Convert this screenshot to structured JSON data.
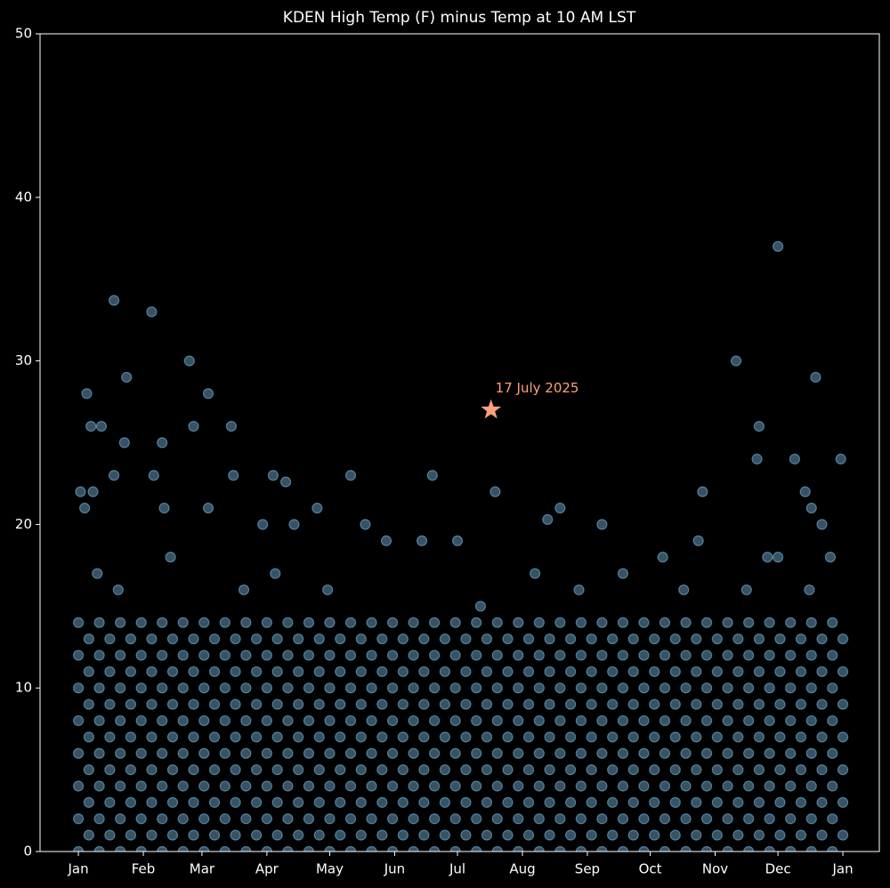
{
  "chart_data": {
    "type": "scatter",
    "title": "KDEN High Temp (F) minus Temp at 10 AM LST",
    "color": "#87cefa",
    "xlim": [
      -17.3,
      383.4
    ],
    "ylim": [
      0,
      50
    ],
    "xticks": [
      {
        "value": 1,
        "label": "Jan"
      },
      {
        "value": 32,
        "label": "Feb"
      },
      {
        "value": 60,
        "label": "Mar"
      },
      {
        "value": 91,
        "label": "Apr"
      },
      {
        "value": 121,
        "label": "May"
      },
      {
        "value": 152,
        "label": "Jun"
      },
      {
        "value": 182,
        "label": "Jul"
      },
      {
        "value": 213,
        "label": "Aug"
      },
      {
        "value": 244,
        "label": "Sep"
      },
      {
        "value": 274,
        "label": "Oct"
      },
      {
        "value": 305,
        "label": "Nov"
      },
      {
        "value": 335,
        "label": "Dec"
      },
      {
        "value": 366,
        "label": "Jan"
      }
    ],
    "yticks": [
      0,
      10,
      20,
      30,
      40,
      50
    ],
    "series": [
      {
        "x": [
          1,
          11,
          21,
          31,
          41,
          51,
          61,
          71,
          81,
          91,
          101,
          111,
          121,
          131,
          141,
          151,
          161,
          171,
          181,
          191,
          201,
          211,
          221,
          231,
          241,
          251,
          261,
          271,
          281,
          291,
          301,
          311,
          321,
          331,
          341,
          351,
          361
        ],
        "values": [
          0,
          0,
          0,
          0,
          0,
          0,
          0,
          0,
          0,
          0,
          0,
          0,
          0,
          0,
          0,
          0,
          0,
          0,
          0,
          0,
          0,
          0,
          0,
          0,
          0,
          0,
          0,
          0,
          0,
          0,
          0,
          0,
          0,
          0,
          0,
          0,
          0
        ]
      },
      {
        "x": [
          6,
          16,
          26,
          36,
          46,
          56,
          66,
          76,
          86,
          96,
          106,
          116,
          126,
          136,
          146,
          156,
          166,
          176,
          186,
          196,
          206,
          216,
          226,
          236,
          246,
          256,
          266,
          276,
          286,
          296,
          306,
          316,
          326,
          336,
          346,
          356,
          366
        ],
        "values": [
          1,
          1,
          1,
          1,
          1,
          1,
          1,
          1,
          1,
          1,
          1,
          1,
          1,
          1,
          1,
          1,
          1,
          1,
          1,
          1,
          1,
          1,
          1,
          1,
          1,
          1,
          1,
          1,
          1,
          1,
          1,
          1,
          1,
          1,
          1,
          1,
          1
        ]
      },
      {
        "x": [
          1,
          11,
          21,
          31,
          41,
          51,
          61,
          71,
          81,
          91,
          101,
          111,
          121,
          131,
          141,
          151,
          161,
          171,
          181,
          191,
          201,
          211,
          221,
          231,
          241,
          251,
          261,
          271,
          281,
          291,
          301,
          311,
          321,
          331,
          341,
          351,
          361
        ],
        "values": [
          2,
          2,
          2,
          2,
          2,
          2,
          2,
          2,
          2,
          2,
          2,
          2,
          2,
          2,
          2,
          2,
          2,
          2,
          2,
          2,
          2,
          2,
          2,
          2,
          2,
          2,
          2,
          2,
          2,
          2,
          2,
          2,
          2,
          2,
          2,
          2,
          2
        ]
      },
      {
        "x": [
          6,
          16,
          26,
          36,
          46,
          56,
          66,
          76,
          86,
          96,
          106,
          116,
          126,
          136,
          146,
          156,
          166,
          176,
          186,
          196,
          206,
          216,
          226,
          236,
          246,
          256,
          266,
          276,
          286,
          296,
          306,
          316,
          326,
          336,
          346,
          356,
          366
        ],
        "values": [
          3,
          3,
          3,
          3,
          3,
          3,
          3,
          3,
          3,
          3,
          3,
          3,
          3,
          3,
          3,
          3,
          3,
          3,
          3,
          3,
          3,
          3,
          3,
          3,
          3,
          3,
          3,
          3,
          3,
          3,
          3,
          3,
          3,
          3,
          3,
          3,
          3
        ]
      },
      {
        "x": [
          1,
          11,
          21,
          31,
          41,
          51,
          61,
          71,
          81,
          91,
          101,
          111,
          121,
          131,
          141,
          151,
          161,
          171,
          181,
          191,
          201,
          211,
          221,
          231,
          241,
          251,
          261,
          271,
          281,
          291,
          301,
          311,
          321,
          331,
          341,
          351,
          361
        ],
        "values": [
          4,
          4,
          4,
          4,
          4,
          4,
          4,
          4,
          4,
          4,
          4,
          4,
          4,
          4,
          4,
          4,
          4,
          4,
          4,
          4,
          4,
          4,
          4,
          4,
          4,
          4,
          4,
          4,
          4,
          4,
          4,
          4,
          4,
          4,
          4,
          4,
          4
        ]
      },
      {
        "x": [
          6,
          16,
          26,
          36,
          46,
          56,
          66,
          76,
          86,
          96,
          106,
          116,
          126,
          136,
          146,
          156,
          166,
          176,
          186,
          196,
          206,
          216,
          226,
          236,
          246,
          256,
          266,
          276,
          286,
          296,
          306,
          316,
          326,
          336,
          346,
          356,
          366
        ],
        "values": [
          5,
          5,
          5,
          5,
          5,
          5,
          5,
          5,
          5,
          5,
          5,
          5,
          5,
          5,
          5,
          5,
          5,
          5,
          5,
          5,
          5,
          5,
          5,
          5,
          5,
          5,
          5,
          5,
          5,
          5,
          5,
          5,
          5,
          5,
          5,
          5,
          5
        ]
      },
      {
        "x": [
          1,
          11,
          21,
          31,
          41,
          51,
          61,
          71,
          81,
          91,
          101,
          111,
          121,
          131,
          141,
          151,
          161,
          171,
          181,
          191,
          201,
          211,
          221,
          231,
          241,
          251,
          261,
          271,
          281,
          291,
          301,
          311,
          321,
          331,
          341,
          351,
          361
        ],
        "values": [
          6,
          6,
          6,
          6,
          6,
          6,
          6,
          6,
          6,
          6,
          6,
          6,
          6,
          6,
          6,
          6,
          6,
          6,
          6,
          6,
          6,
          6,
          6,
          6,
          6,
          6,
          6,
          6,
          6,
          6,
          6,
          6,
          6,
          6,
          6,
          6,
          6
        ]
      },
      {
        "x": [
          6,
          16,
          26,
          36,
          46,
          56,
          66,
          76,
          86,
          96,
          106,
          116,
          126,
          136,
          146,
          156,
          166,
          176,
          186,
          196,
          206,
          216,
          226,
          236,
          246,
          256,
          266,
          276,
          286,
          296,
          306,
          316,
          326,
          336,
          346,
          356,
          366
        ],
        "values": [
          7,
          7,
          7,
          7,
          7,
          7,
          7,
          7,
          7,
          7,
          7,
          7,
          7,
          7,
          7,
          7,
          7,
          7,
          7,
          7,
          7,
          7,
          7,
          7,
          7,
          7,
          7,
          7,
          7,
          7,
          7,
          7,
          7,
          7,
          7,
          7,
          7
        ]
      },
      {
        "x": [
          1,
          11,
          21,
          31,
          41,
          51,
          61,
          71,
          81,
          91,
          101,
          111,
          121,
          131,
          141,
          151,
          161,
          171,
          181,
          191,
          201,
          211,
          221,
          231,
          241,
          251,
          261,
          271,
          281,
          291,
          301,
          311,
          321,
          331,
          341,
          351,
          361
        ],
        "values": [
          8,
          8,
          8,
          8,
          8,
          8,
          8,
          8,
          8,
          8,
          8,
          8,
          8,
          8,
          8,
          8,
          8,
          8,
          8,
          8,
          8,
          8,
          8,
          8,
          8,
          8,
          8,
          8,
          8,
          8,
          8,
          8,
          8,
          8,
          8,
          8,
          8
        ]
      },
      {
        "x": [
          6,
          16,
          26,
          36,
          46,
          56,
          66,
          76,
          86,
          96,
          106,
          116,
          126,
          136,
          146,
          156,
          166,
          176,
          186,
          196,
          206,
          216,
          226,
          236,
          246,
          256,
          266,
          276,
          286,
          296,
          306,
          316,
          326,
          336,
          346,
          356,
          366
        ],
        "values": [
          9,
          9,
          9,
          9,
          9,
          9,
          9,
          9,
          9,
          9,
          9,
          9,
          9,
          9,
          9,
          9,
          9,
          9,
          9,
          9,
          9,
          9,
          9,
          9,
          9,
          9,
          9,
          9,
          9,
          9,
          9,
          9,
          9,
          9,
          9,
          9,
          9
        ]
      },
      {
        "x": [
          1,
          11,
          21,
          31,
          41,
          51,
          61,
          71,
          81,
          91,
          101,
          111,
          121,
          131,
          141,
          151,
          161,
          171,
          181,
          191,
          201,
          211,
          221,
          231,
          241,
          251,
          261,
          271,
          281,
          291,
          301,
          311,
          321,
          331,
          341,
          351,
          361
        ],
        "values": [
          10,
          10,
          10,
          10,
          10,
          10,
          10,
          10,
          10,
          10,
          10,
          10,
          10,
          10,
          10,
          10,
          10,
          10,
          10,
          10,
          10,
          10,
          10,
          10,
          10,
          10,
          10,
          10,
          10,
          10,
          10,
          10,
          10,
          10,
          10,
          10,
          10
        ]
      },
      {
        "x": [
          6,
          16,
          26,
          36,
          46,
          56,
          66,
          76,
          86,
          96,
          106,
          116,
          126,
          136,
          146,
          156,
          166,
          176,
          186,
          196,
          206,
          216,
          226,
          236,
          246,
          256,
          266,
          276,
          286,
          296,
          306,
          316,
          326,
          336,
          346,
          356,
          366
        ],
        "values": [
          11,
          11,
          11,
          11,
          11,
          11,
          11,
          11,
          11,
          11,
          11,
          11,
          11,
          11,
          11,
          11,
          11,
          11,
          11,
          11,
          11,
          11,
          11,
          11,
          11,
          11,
          11,
          11,
          11,
          11,
          11,
          11,
          11,
          11,
          11,
          11,
          11
        ]
      },
      {
        "x": [
          1,
          11,
          21,
          31,
          41,
          51,
          61,
          71,
          81,
          91,
          101,
          111,
          121,
          131,
          141,
          151,
          161,
          171,
          181,
          191,
          201,
          211,
          221,
          231,
          241,
          251,
          261,
          271,
          281,
          291,
          301,
          311,
          321,
          331,
          341,
          351,
          361
        ],
        "values": [
          12,
          12,
          12,
          12,
          12,
          12,
          12,
          12,
          12,
          12,
          12,
          12,
          12,
          12,
          12,
          12,
          12,
          12,
          12,
          12,
          12,
          12,
          12,
          12,
          12,
          12,
          12,
          12,
          12,
          12,
          12,
          12,
          12,
          12,
          12,
          12,
          12
        ]
      },
      {
        "x": [
          6,
          16,
          26,
          36,
          46,
          56,
          66,
          76,
          86,
          96,
          106,
          116,
          126,
          136,
          146,
          156,
          166,
          176,
          186,
          196,
          206,
          216,
          226,
          236,
          246,
          256,
          266,
          276,
          286,
          296,
          306,
          316,
          326,
          336,
          346,
          356,
          366
        ],
        "values": [
          13,
          13,
          13,
          13,
          13,
          13,
          13,
          13,
          13,
          13,
          13,
          13,
          13,
          13,
          13,
          13,
          13,
          13,
          13,
          13,
          13,
          13,
          13,
          13,
          13,
          13,
          13,
          13,
          13,
          13,
          13,
          13,
          13,
          13,
          13,
          13,
          13
        ]
      },
      {
        "x": [
          1,
          11,
          21,
          31,
          41,
          51,
          61,
          71,
          81,
          91,
          101,
          111,
          121,
          131,
          141,
          151,
          161,
          171,
          181,
          191,
          201,
          211,
          221,
          231,
          241,
          251,
          261,
          271,
          281,
          291,
          301,
          311,
          321,
          331,
          341,
          351,
          361
        ],
        "values": [
          14,
          14,
          14,
          14,
          14,
          14,
          14,
          14,
          14,
          14,
          14,
          14,
          14,
          14,
          14,
          14,
          14,
          14,
          14,
          14,
          14,
          14,
          14,
          14,
          14,
          14,
          14,
          14,
          14,
          14,
          14,
          14,
          14,
          14,
          14,
          14,
          14
        ]
      },
      {
        "x": [
          18,
          36,
          54,
          63,
          5,
          7,
          12,
          24,
          56,
          74,
          23,
          41,
          18,
          37,
          75,
          94,
          100,
          131,
          170,
          200,
          138,
          148,
          165,
          182,
          225,
          231,
          251,
          299,
          315,
          326,
          325,
          335,
          343,
          353,
          348,
          365,
          351,
          356,
          2,
          8,
          4,
          63,
          42,
          89,
          104,
          115,
          280,
          297,
          335,
          219,
          261,
          193,
          240,
          20,
          80,
          120,
          290,
          320,
          350,
          45,
          330,
          360,
          10,
          95
        ],
        "values": [
          33.7,
          33,
          30,
          28,
          28,
          26,
          26,
          29,
          26,
          26,
          25,
          25,
          23,
          23,
          23,
          23,
          22.6,
          23,
          23,
          22,
          20,
          19,
          19,
          19,
          20.3,
          21,
          20,
          22,
          30,
          26,
          24,
          37,
          24,
          29,
          22,
          24,
          21,
          20,
          22,
          22,
          21,
          21,
          21,
          20,
          20,
          21,
          18,
          19,
          18,
          17,
          17,
          15,
          16,
          16,
          16,
          16,
          16,
          16,
          16,
          18,
          18,
          18,
          17,
          17
        ]
      }
    ],
    "annotation": {
      "text": "17 July 2025",
      "x": 198,
      "y": 27,
      "color": "#ffa07a"
    }
  }
}
